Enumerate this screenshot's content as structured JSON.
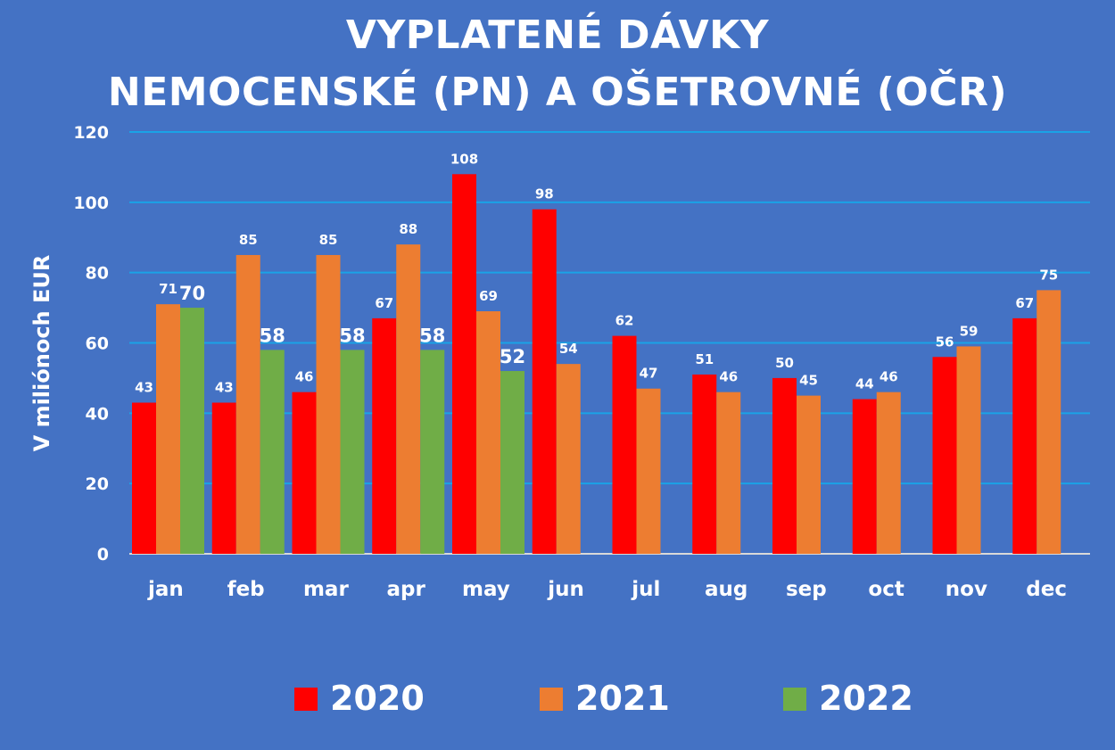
{
  "chart_data": {
    "type": "bar",
    "title": [
      "VYPLATENÉ DÁVKY",
      "NEMOCENSKÉ (PN) A OŠETROVNÉ (OČR)"
    ],
    "ylabel": "V miliónoch EUR",
    "xlabel": "",
    "ylim": [
      0,
      120
    ],
    "yticks": [
      0,
      20,
      40,
      60,
      80,
      100,
      120
    ],
    "grid": true,
    "legend_position": "bottom",
    "categories": [
      "jan",
      "feb",
      "mar",
      "apr",
      "may",
      "jun",
      "jul",
      "aug",
      "sep",
      "oct",
      "nov",
      "dec"
    ],
    "series": [
      {
        "name": "2020",
        "color": "#ff0000",
        "values": [
          43,
          43,
          46,
          67,
          108,
          98,
          62,
          51,
          50,
          44,
          56,
          67
        ]
      },
      {
        "name": "2021",
        "color": "#ed7d31",
        "values": [
          71,
          85,
          85,
          88,
          69,
          54,
          47,
          46,
          45,
          46,
          59,
          75
        ]
      },
      {
        "name": "2022",
        "color": "#70ad47",
        "values": [
          70,
          58,
          58,
          58,
          52,
          null,
          null,
          null,
          null,
          null,
          null,
          null
        ]
      }
    ]
  },
  "colors": {
    "background": "#4472c4",
    "gridline": "#1aa3e6",
    "text": "#ffffff"
  }
}
